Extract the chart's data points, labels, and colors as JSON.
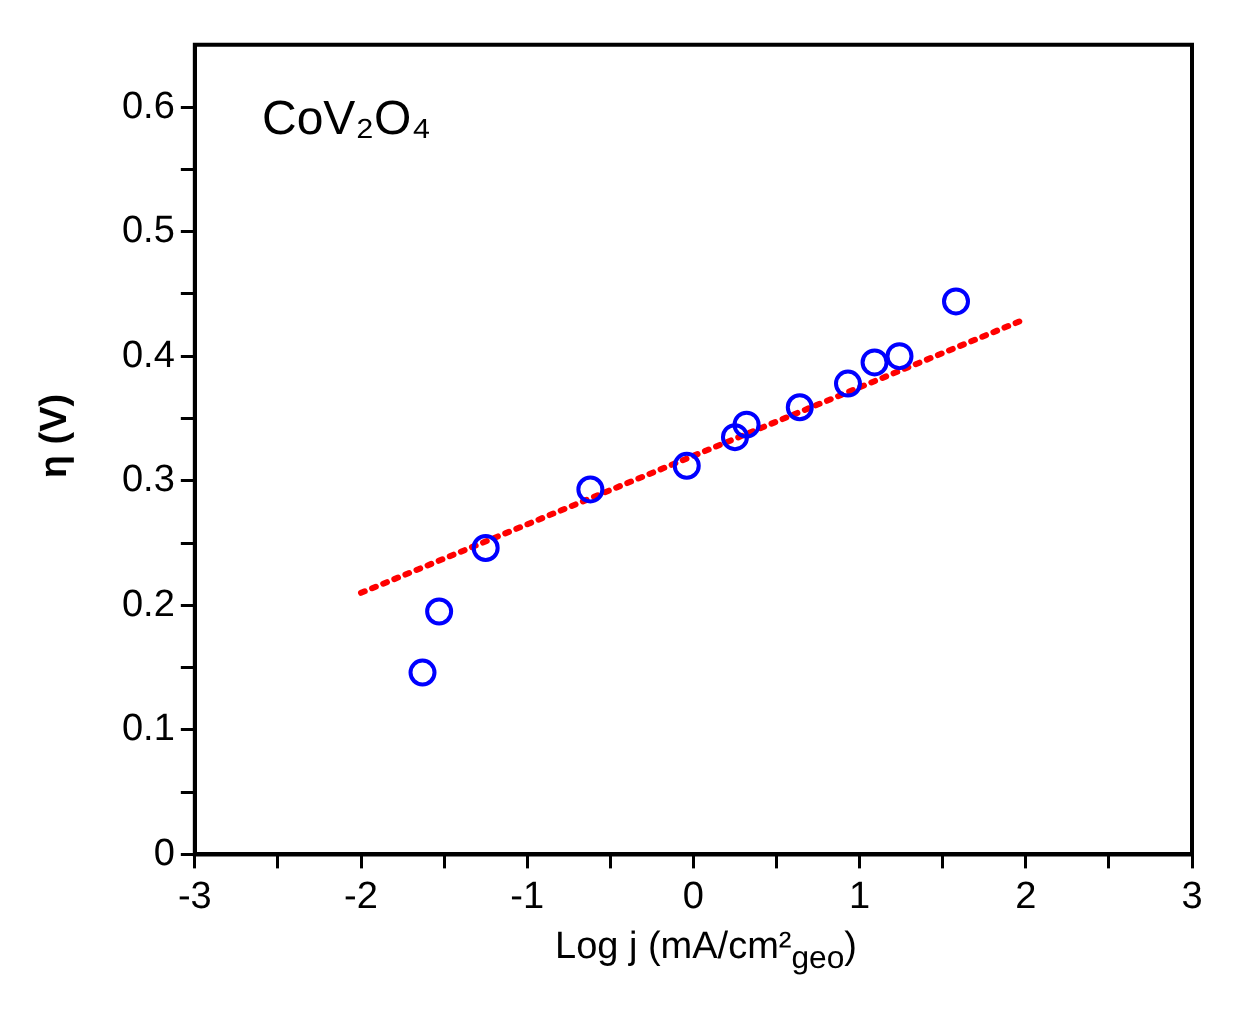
{
  "chart_data": {
    "type": "scatter",
    "xlabel": "Log j (mA/cm²$_{geo}$)",
    "ylabel": "η (V)",
    "annotations": [
      "CoV₂O₄"
    ],
    "xlim": [
      -3,
      3
    ],
    "ylim": [
      0,
      0.65
    ],
    "xticks": [
      -3,
      {
        "value": -2.5,
        "label": null
      },
      -2,
      {
        "value": -1.5,
        "label": null
      },
      -1,
      {
        "value": -0.5,
        "label": null
      },
      0,
      {
        "value": 0.5,
        "label": null
      },
      1,
      {
        "value": 1.5,
        "label": null
      },
      2,
      {
        "value": 2.5,
        "label": null
      },
      3
    ],
    "yticks": [
      0,
      {
        "value": 0.05,
        "label": null
      },
      0.1,
      {
        "value": 0.15,
        "label": null
      },
      0.2,
      {
        "value": 0.25,
        "label": null
      },
      0.3,
      {
        "value": 0.35,
        "label": null
      },
      0.4,
      {
        "value": 0.45,
        "label": null
      },
      0.5,
      {
        "value": 0.55,
        "label": null
      },
      0.6
    ],
    "grid": false,
    "legend": false,
    "series": [
      {
        "type": "scatter",
        "color": "#0000ff",
        "marker": "circle",
        "x": [
          -1.63,
          -1.53,
          -1.25,
          -0.62,
          -0.04,
          0.25,
          0.32,
          0.64,
          0.93,
          1.09,
          1.24,
          1.58
        ],
        "values": [
          0.146,
          0.195,
          0.246,
          0.293,
          0.312,
          0.335,
          0.345,
          0.359,
          0.378,
          0.395,
          0.4,
          0.444
        ]
      },
      {
        "type": "line",
        "color": "#ff0000",
        "marker": "none",
        "line_style": "dotted",
        "x": [
          -2,
          2
        ],
        "values": [
          0.21,
          0.43
        ]
      }
    ]
  }
}
